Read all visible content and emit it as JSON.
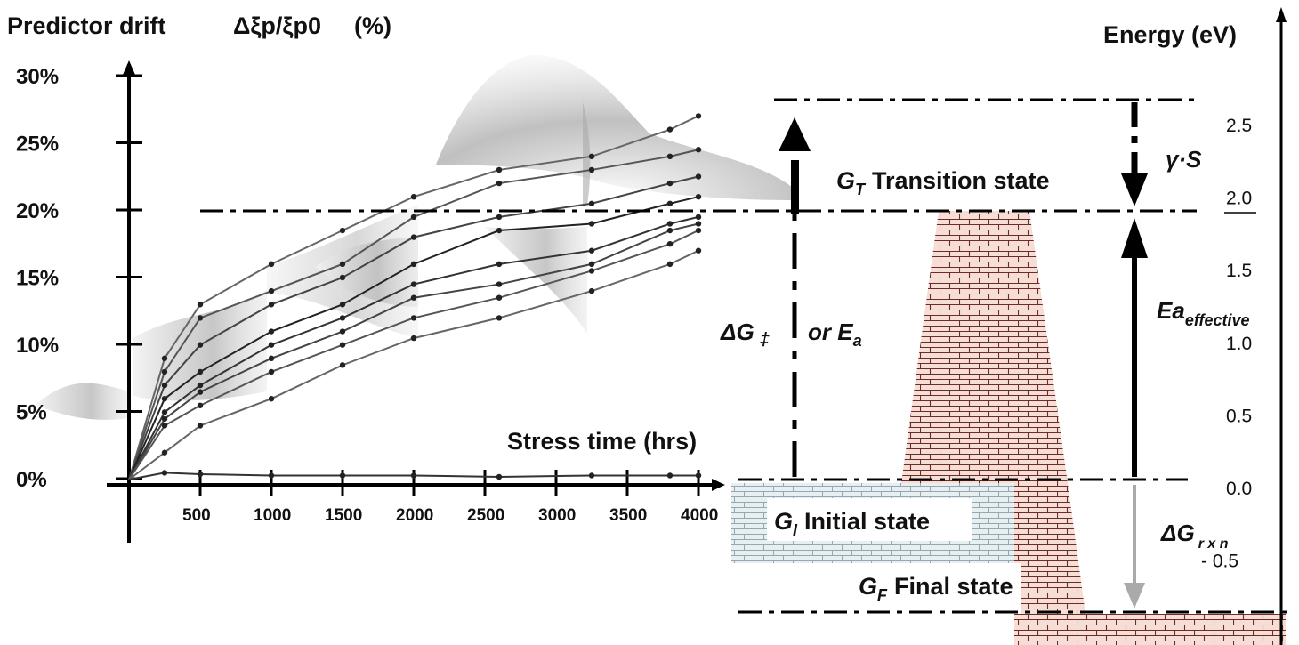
{
  "left_axis": {
    "title": "Predictor drift",
    "ratio_label": "Δξp/ξp0",
    "unit_label": "(%)",
    "ticks": [
      "30%",
      "25%",
      "20%",
      "15%",
      "10%",
      "5%",
      "0%"
    ]
  },
  "x_axis": {
    "title": "Stress time (hrs)",
    "ticks": [
      "500",
      "1000",
      "1500",
      "2000",
      "2500",
      "3000",
      "3500",
      "4000"
    ]
  },
  "energy_axis": {
    "title": "Energy (eV)",
    "ticks": [
      "2.5",
      "2.0",
      "1.5",
      "1.0",
      "0.5",
      "0.0",
      "- 0.5"
    ]
  },
  "states": {
    "transition": "Transition state",
    "initial": "Initial state",
    "final": "Final state",
    "transition_symbol": "G",
    "transition_sub": "T",
    "initial_symbol": "G",
    "initial_sub": "I",
    "final_symbol": "G",
    "final_sub": "F"
  },
  "labels": {
    "delta_g": "ΔG",
    "delta_g_sub": "‡",
    "or_ea": "or E",
    "or_ea_sub": "a",
    "gamma_s": "γ·S",
    "ea_effective": "Ea",
    "ea_effective_sub": "effective",
    "delta_g_rxn": "ΔG",
    "delta_g_rxn_sub": "r x n"
  },
  "colors": {
    "brick_fill": "#f6ddd6",
    "brick_line": "#6b2e26",
    "gray_brick_line": "#9aa6ad",
    "arrow": "#000000",
    "rxn_arrow": "#aaaaaa"
  },
  "chart_data": {
    "type": "line",
    "x": [
      0,
      250,
      500,
      1000,
      1500,
      2000,
      2600,
      3250,
      3800,
      4000
    ],
    "xlim": [
      0,
      4000
    ],
    "ylim": [
      0,
      30
    ],
    "series": [
      {
        "values": [
          0,
          9,
          13,
          16,
          18.5,
          21,
          23,
          24,
          26,
          27
        ]
      },
      {
        "values": [
          0,
          8,
          12,
          14,
          16,
          19.5,
          22,
          23,
          24,
          24.5
        ]
      },
      {
        "values": [
          0,
          7,
          10,
          13,
          15,
          18,
          19.5,
          20.5,
          22,
          22.5
        ]
      },
      {
        "values": [
          0,
          6,
          8,
          11,
          13,
          16,
          18.5,
          19,
          20.5,
          21
        ]
      },
      {
        "values": [
          0,
          5,
          7,
          10,
          12,
          14.5,
          16,
          17,
          19,
          19.5
        ]
      },
      {
        "values": [
          0,
          4.5,
          6.5,
          9,
          11,
          13.5,
          14.5,
          16,
          18.5,
          19
        ]
      },
      {
        "values": [
          0,
          4,
          5.5,
          8,
          10,
          12,
          13.5,
          15.5,
          17.5,
          18.5
        ]
      },
      {
        "values": [
          0,
          2,
          4,
          6,
          8.5,
          10.5,
          12,
          14,
          16,
          17
        ]
      },
      {
        "values": [
          0,
          0.5,
          0.4,
          0.3,
          0.3,
          0.3,
          0.2,
          0.3,
          0.3,
          0.3
        ]
      }
    ]
  }
}
